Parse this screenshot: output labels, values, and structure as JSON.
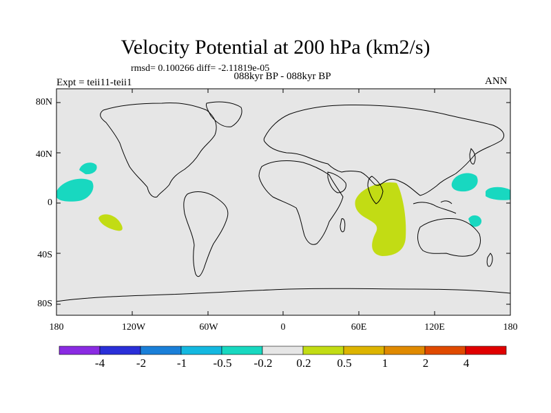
{
  "title": "Velocity Potential at 200 hPa (km2/s)",
  "stats": "rmsd= 0.100266 diff= -2.11819e-05",
  "experiment": "Expt = teii11-teii1",
  "period": "088kyr BP - 088kyr BP",
  "season": "ANN",
  "lat_ticks": [
    "80N",
    "40N",
    "0",
    "40S",
    "80S"
  ],
  "lon_ticks": [
    "180",
    "120W",
    "60W",
    "0",
    "60E",
    "120E",
    "180"
  ],
  "colorbar": {
    "colors": [
      "#8a2be2",
      "#2a2fd8",
      "#1a7fd8",
      "#14b8e0",
      "#18d8c0",
      "#e6e6e6",
      "#c2dc14",
      "#ddb400",
      "#e08a00",
      "#e04a00",
      "#e00000"
    ],
    "labels": [
      "-4",
      "-2",
      "-1",
      "-0.5",
      "-0.2",
      "0.2",
      "0.5",
      "1",
      "2",
      "4"
    ]
  },
  "colors": {
    "ocean_bg": "#e6e6e6",
    "negative_anomaly": "#18d8c0",
    "positive_anomaly": "#c2dc14"
  }
}
